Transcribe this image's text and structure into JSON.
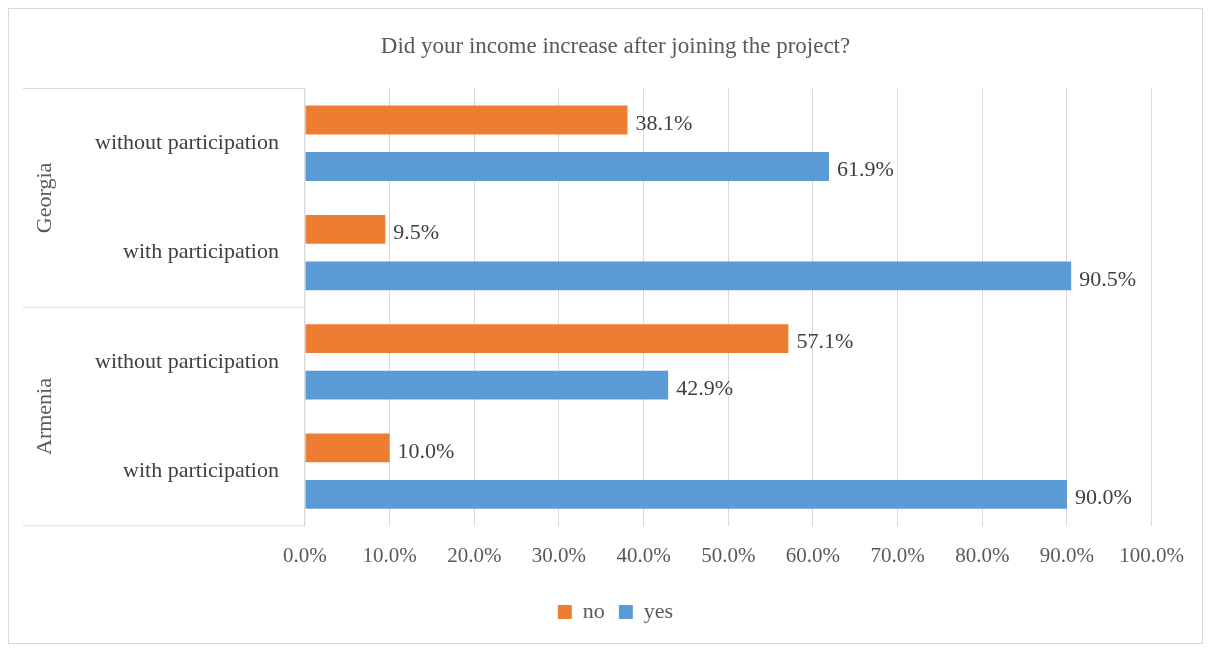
{
  "chart_data": {
    "type": "bar",
    "orientation": "horizontal",
    "title": "Did your income increase after joining the project?",
    "categories": [
      "without participation",
      "with participation",
      "without participation",
      "with participation"
    ],
    "annotations": [
      "Georgia",
      "Armenia"
    ],
    "series": [
      {
        "name": "no",
        "color": "#ed7d31",
        "values": [
          38.1,
          9.5,
          57.1,
          10.0
        ],
        "value_labels": [
          "38.1%",
          "9.5%",
          "57.1%",
          "10.0%"
        ]
      },
      {
        "name": "yes",
        "color": "#5b9bd5",
        "values": [
          61.9,
          90.5,
          42.9,
          90.0
        ],
        "value_labels": [
          "61.9%",
          "90.5%",
          "42.9%",
          "90.0%"
        ]
      }
    ],
    "xlim": [
      0,
      100
    ],
    "xticks": [
      {
        "value": 0,
        "label": "0.0%"
      },
      {
        "value": 10,
        "label": "10.0%"
      },
      {
        "value": 20,
        "label": "20.0%"
      },
      {
        "value": 30,
        "label": "30.0%"
      },
      {
        "value": 40,
        "label": "40.0%"
      },
      {
        "value": 50,
        "label": "50.0%"
      },
      {
        "value": 60,
        "label": "60.0%"
      },
      {
        "value": 70,
        "label": "70.0%"
      },
      {
        "value": 80,
        "label": "80.0%"
      },
      {
        "value": 90,
        "label": "90.0%"
      },
      {
        "value": 100,
        "label": "100.0%"
      }
    ],
    "grid": "x",
    "legend": "bottom"
  }
}
